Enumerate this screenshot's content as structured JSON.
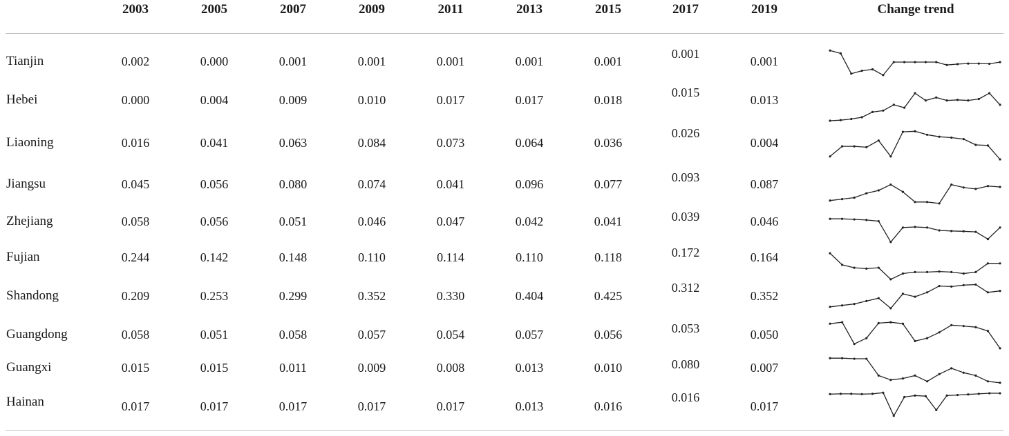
{
  "table": {
    "headers": [
      "",
      "2003",
      "2005",
      "2007",
      "2009",
      "2011",
      "2013",
      "2015",
      "2017",
      "2019",
      "Change trend"
    ],
    "rows": [
      {
        "region": "Tianjin",
        "values": [
          "0.002",
          "0.000",
          "0.001",
          "0.001",
          "0.001",
          "0.001",
          "0.001",
          "0.001",
          "0.001"
        ]
      },
      {
        "region": "Hebei",
        "values": [
          "0.000",
          "0.004",
          "0.009",
          "0.010",
          "0.017",
          "0.017",
          "0.018",
          "0.015",
          "0.013"
        ]
      },
      {
        "region": "Liaoning",
        "values": [
          "0.016",
          "0.041",
          "0.063",
          "0.084",
          "0.073",
          "0.064",
          "0.036",
          "0.026",
          "0.004"
        ]
      },
      {
        "region": "Jiangsu",
        "values": [
          "0.045",
          "0.056",
          "0.080",
          "0.074",
          "0.041",
          "0.096",
          "0.077",
          "0.093",
          "0.087"
        ]
      },
      {
        "region": "Zhejiang",
        "values": [
          "0.058",
          "0.056",
          "0.051",
          "0.046",
          "0.047",
          "0.042",
          "0.041",
          "0.039",
          "0.046"
        ]
      },
      {
        "region": "Fujian",
        "values": [
          "0.244",
          "0.142",
          "0.148",
          "0.110",
          "0.114",
          "0.110",
          "0.118",
          "0.172",
          "0.164"
        ]
      },
      {
        "region": "Shandong",
        "values": [
          "0.209",
          "0.253",
          "0.299",
          "0.352",
          "0.330",
          "0.404",
          "0.425",
          "0.312",
          "0.352"
        ]
      },
      {
        "region": "Guangdong",
        "values": [
          "0.058",
          "0.051",
          "0.058",
          "0.057",
          "0.054",
          "0.057",
          "0.056",
          "0.053",
          "0.050"
        ]
      },
      {
        "region": "Guangxi",
        "values": [
          "0.015",
          "0.015",
          "0.011",
          "0.009",
          "0.008",
          "0.013",
          "0.010",
          "0.080",
          "0.007"
        ]
      },
      {
        "region": "Hainan",
        "values": [
          "0.017",
          "0.017",
          "0.017",
          "0.017",
          "0.017",
          "0.013",
          "0.016",
          "0.016",
          "0.017"
        ]
      }
    ]
  },
  "sparklines": [
    {
      "region": "Tianjin",
      "values": [
        0.9,
        0.8,
        0.1,
        0.2,
        0.25,
        0.05,
        0.5,
        0.5,
        0.5,
        0.5,
        0.5,
        0.4,
        0.43,
        0.45,
        0.45,
        0.44,
        0.5
      ]
    },
    {
      "region": "Hebei",
      "values": [
        0,
        0.02,
        0.06,
        0.12,
        0.3,
        0.35,
        0.55,
        0.45,
        0.95,
        0.7,
        0.8,
        0.7,
        0.72,
        0.7,
        0.75,
        0.95,
        0.55
      ]
    },
    {
      "region": "Liaoning",
      "values": [
        0.1,
        0.45,
        0.45,
        0.42,
        0.65,
        0.1,
        0.95,
        0.97,
        0.85,
        0.78,
        0.75,
        0.7,
        0.5,
        0.48,
        0
      ]
    },
    {
      "region": "Jiangsu",
      "values": [
        0.15,
        0.2,
        0.25,
        0.4,
        0.5,
        0.7,
        0.45,
        0.1,
        0.1,
        0.05,
        0.7,
        0.6,
        0.55,
        0.65,
        0.62
      ]
    },
    {
      "region": "Zhejiang",
      "values": [
        0.9,
        0.9,
        0.88,
        0.86,
        0.82,
        0.1,
        0.6,
        0.62,
        0.6,
        0.5,
        0.48,
        0.47,
        0.45,
        0.2,
        0.6
      ]
    },
    {
      "region": "Fujian",
      "values": [
        0.95,
        0.55,
        0.45,
        0.42,
        0.45,
        0.05,
        0.25,
        0.3,
        0.3,
        0.32,
        0.3,
        0.25,
        0.3,
        0.6,
        0.6
      ]
    },
    {
      "region": "Shandong",
      "values": [
        0.1,
        0.15,
        0.2,
        0.3,
        0.4,
        0.05,
        0.55,
        0.45,
        0.6,
        0.82,
        0.8,
        0.85,
        0.87,
        0.6,
        0.65
      ]
    },
    {
      "region": "Guangdong",
      "values": [
        0.9,
        0.95,
        0.2,
        0.4,
        0.92,
        0.95,
        0.9,
        0.3,
        0.4,
        0.6,
        0.85,
        0.82,
        0.78,
        0.65,
        0.05
      ]
    },
    {
      "region": "Guangxi",
      "values": [
        0.9,
        0.9,
        0.88,
        0.88,
        0.3,
        0.15,
        0.2,
        0.3,
        0.1,
        0.35,
        0.55,
        0.4,
        0.3,
        0.1,
        0.05
      ]
    },
    {
      "region": "Hainan",
      "values": [
        0.85,
        0.86,
        0.86,
        0.85,
        0.86,
        0.9,
        0.1,
        0.75,
        0.8,
        0.78,
        0.3,
        0.8,
        0.82,
        0.84,
        0.86,
        0.88,
        0.88
      ]
    }
  ]
}
